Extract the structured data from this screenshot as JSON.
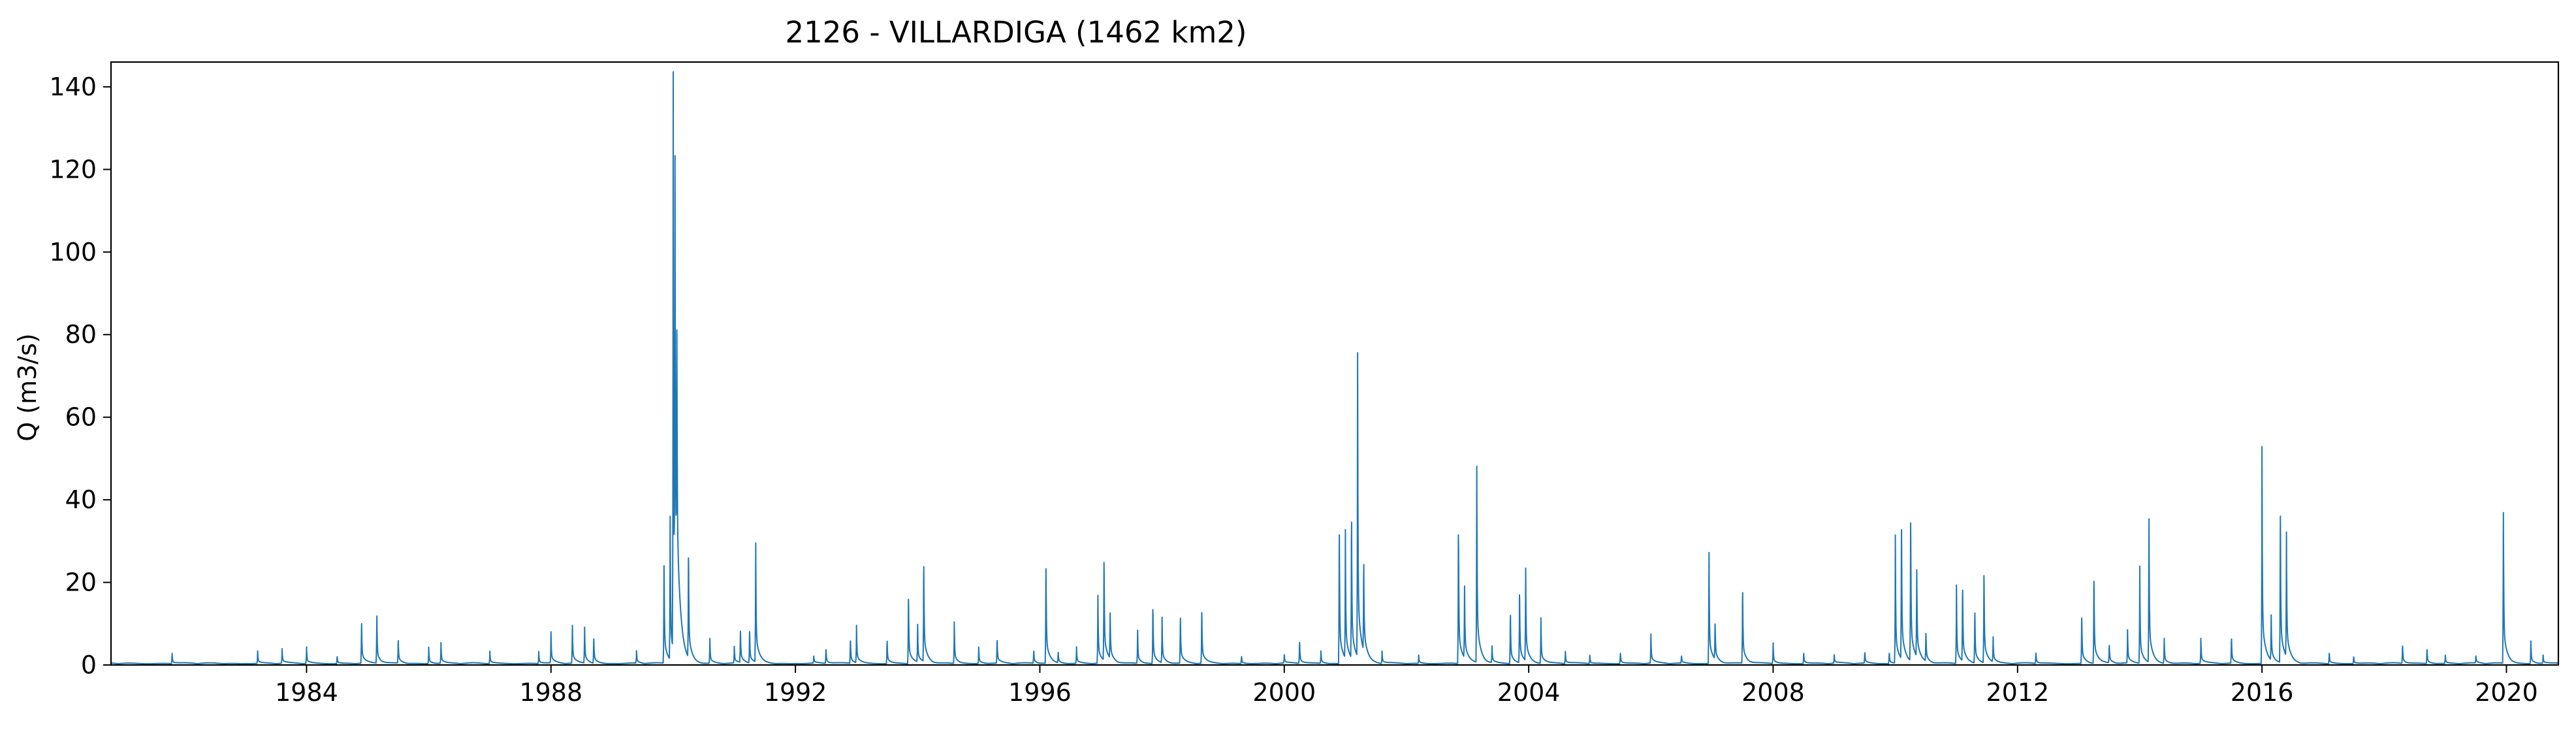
{
  "chart_data": {
    "type": "line",
    "title": "2126 - VILLARDIGA (1462 km2)",
    "xlabel": "",
    "ylabel": "Q (m3/s)",
    "x_ticks": [
      "1984",
      "1988",
      "1992",
      "1996",
      "2000",
      "2004",
      "2008",
      "2012",
      "2016",
      "2020"
    ],
    "y_ticks": [
      "0",
      "20",
      "40",
      "60",
      "80",
      "100",
      "120",
      "140"
    ],
    "xlim": [
      1980.8,
      2020.85
    ],
    "ylim": [
      0,
      146
    ],
    "grid": false,
    "line_color": "#1f77b4",
    "baseline_flow": 0.3,
    "series": [
      {
        "peaks": [
          {
            "date": 1981.8,
            "q": 2.5
          },
          {
            "date": 1983.2,
            "q": 3
          },
          {
            "date": 1983.6,
            "q": 3.5
          },
          {
            "date": 1984.0,
            "q": 4
          },
          {
            "date": 1984.5,
            "q": 2
          },
          {
            "date": 1984.9,
            "q": 11.5
          },
          {
            "date": 1985.15,
            "q": 12.5
          },
          {
            "date": 1985.5,
            "q": 6.5
          },
          {
            "date": 1986.0,
            "q": 4
          },
          {
            "date": 1986.2,
            "q": 5
          },
          {
            "date": 1987.0,
            "q": 3
          },
          {
            "date": 1987.8,
            "q": 3
          },
          {
            "date": 1988.0,
            "q": 7.5
          },
          {
            "date": 1988.35,
            "q": 10
          },
          {
            "date": 1988.55,
            "q": 9.5
          },
          {
            "date": 1988.7,
            "q": 7
          },
          {
            "date": 1989.4,
            "q": 3
          },
          {
            "date": 1989.85,
            "q": 28
          },
          {
            "date": 1989.95,
            "q": 38
          },
          {
            "date": 1990.0,
            "q": 139.5
          },
          {
            "date": 1990.03,
            "q": 105
          },
          {
            "date": 1990.06,
            "q": 58
          },
          {
            "date": 1990.25,
            "q": 28.5
          },
          {
            "date": 1990.6,
            "q": 6
          },
          {
            "date": 1991.0,
            "q": 4
          },
          {
            "date": 1991.1,
            "q": 9
          },
          {
            "date": 1991.25,
            "q": 9
          },
          {
            "date": 1991.35,
            "q": 31.5
          },
          {
            "date": 1992.3,
            "q": 2
          },
          {
            "date": 1992.5,
            "q": 4
          },
          {
            "date": 1992.9,
            "q": 6.5
          },
          {
            "date": 1993.0,
            "q": 9
          },
          {
            "date": 1993.5,
            "q": 6.5
          },
          {
            "date": 1993.85,
            "q": 18.5
          },
          {
            "date": 1994.0,
            "q": 9
          },
          {
            "date": 1994.1,
            "q": 27.5
          },
          {
            "date": 1994.6,
            "q": 10
          },
          {
            "date": 1995.0,
            "q": 4
          },
          {
            "date": 1995.3,
            "q": 6.5
          },
          {
            "date": 1995.9,
            "q": 3.5
          },
          {
            "date": 1996.1,
            "q": 27.5
          },
          {
            "date": 1996.3,
            "q": 3
          },
          {
            "date": 1996.6,
            "q": 4
          },
          {
            "date": 1996.95,
            "q": 18
          },
          {
            "date": 1997.05,
            "q": 28
          },
          {
            "date": 1997.15,
            "q": 12
          },
          {
            "date": 1997.6,
            "q": 8
          },
          {
            "date": 1997.85,
            "q": 15.5
          },
          {
            "date": 1998.0,
            "q": 11
          },
          {
            "date": 1998.3,
            "q": 13
          },
          {
            "date": 1998.65,
            "q": 14.5
          },
          {
            "date": 1999.3,
            "q": 2
          },
          {
            "date": 2000.0,
            "q": 2
          },
          {
            "date": 2000.25,
            "q": 6
          },
          {
            "date": 2000.6,
            "q": 3
          },
          {
            "date": 2000.9,
            "q": 37.5
          },
          {
            "date": 2001.0,
            "q": 31
          },
          {
            "date": 2001.1,
            "q": 39.5
          },
          {
            "date": 2001.2,
            "q": 73.5
          },
          {
            "date": 2001.3,
            "q": 25
          },
          {
            "date": 2001.6,
            "q": 3
          },
          {
            "date": 2002.2,
            "q": 2
          },
          {
            "date": 2002.85,
            "q": 37
          },
          {
            "date": 2002.95,
            "q": 19
          },
          {
            "date": 2003.15,
            "q": 52
          },
          {
            "date": 2003.4,
            "q": 4
          },
          {
            "date": 2003.7,
            "q": 14
          },
          {
            "date": 2003.85,
            "q": 19.5
          },
          {
            "date": 2003.95,
            "q": 24.5
          },
          {
            "date": 2004.2,
            "q": 11
          },
          {
            "date": 2004.6,
            "q": 3
          },
          {
            "date": 2005.0,
            "q": 2
          },
          {
            "date": 2005.5,
            "q": 3
          },
          {
            "date": 2006.0,
            "q": 7
          },
          {
            "date": 2006.5,
            "q": 2
          },
          {
            "date": 2006.95,
            "q": 29.5
          },
          {
            "date": 2007.05,
            "q": 10
          },
          {
            "date": 2007.5,
            "q": 20.5
          },
          {
            "date": 2008.0,
            "q": 5
          },
          {
            "date": 2008.5,
            "q": 3
          },
          {
            "date": 2009.0,
            "q": 2
          },
          {
            "date": 2009.5,
            "q": 3
          },
          {
            "date": 2009.9,
            "q": 3
          },
          {
            "date": 2010.0,
            "q": 31
          },
          {
            "date": 2010.1,
            "q": 37.5
          },
          {
            "date": 2010.25,
            "q": 39.5
          },
          {
            "date": 2010.35,
            "q": 23
          },
          {
            "date": 2010.5,
            "q": 8
          },
          {
            "date": 2011.0,
            "q": 19
          },
          {
            "date": 2011.1,
            "q": 20.5
          },
          {
            "date": 2011.3,
            "q": 14.5
          },
          {
            "date": 2011.45,
            "q": 25
          },
          {
            "date": 2011.6,
            "q": 6
          },
          {
            "date": 2012.3,
            "q": 3
          },
          {
            "date": 2013.05,
            "q": 13
          },
          {
            "date": 2013.25,
            "q": 23.5
          },
          {
            "date": 2013.5,
            "q": 5
          },
          {
            "date": 2013.8,
            "q": 8
          },
          {
            "date": 2014.0,
            "q": 23.5
          },
          {
            "date": 2014.15,
            "q": 38
          },
          {
            "date": 2014.4,
            "q": 6
          },
          {
            "date": 2015.0,
            "q": 6
          },
          {
            "date": 2015.5,
            "q": 7
          },
          {
            "date": 2016.0,
            "q": 52.5
          },
          {
            "date": 2016.15,
            "q": 12
          },
          {
            "date": 2016.3,
            "q": 42.5
          },
          {
            "date": 2016.4,
            "q": 30
          },
          {
            "date": 2017.1,
            "q": 3
          },
          {
            "date": 2017.5,
            "q": 2
          },
          {
            "date": 2018.3,
            "q": 5
          },
          {
            "date": 2018.7,
            "q": 4
          },
          {
            "date": 2019.0,
            "q": 2
          },
          {
            "date": 2019.5,
            "q": 2
          },
          {
            "date": 2019.95,
            "q": 40
          },
          {
            "date": 2020.4,
            "q": 5.5
          },
          {
            "date": 2020.6,
            "q": 2
          }
        ]
      }
    ]
  }
}
